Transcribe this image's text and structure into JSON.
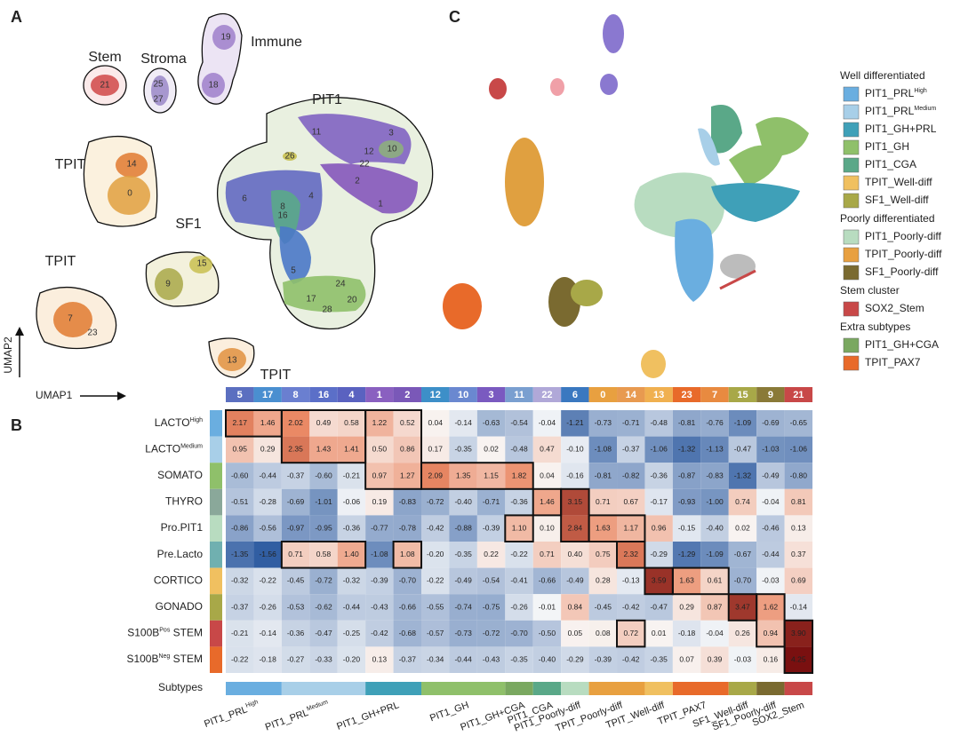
{
  "panels": {
    "a": "A",
    "b": "B",
    "c": "C"
  },
  "umap_a": {
    "groups": [
      "Stem",
      "Stroma",
      "Immune",
      "PIT1",
      "TPIT",
      "SF1",
      "TPIT",
      "TPIT"
    ],
    "clusters": [
      "21",
      "25",
      "27",
      "19",
      "18",
      "11",
      "3",
      "12",
      "10",
      "26",
      "22",
      "2",
      "6",
      "4",
      "8",
      "16",
      "1",
      "5",
      "24",
      "17",
      "20",
      "28",
      "14",
      "0",
      "15",
      "9",
      "7",
      "23",
      "13"
    ],
    "axis_x": "UMAP1",
    "axis_y": "UMAP2"
  },
  "legend": {
    "sections": [
      {
        "title": "Well differentiated",
        "items": [
          {
            "label": "PIT1_PRL",
            "sup": "High",
            "color": "#6aaee0"
          },
          {
            "label": "PIT1_PRL",
            "sup": "Medium",
            "color": "#a8cfe8"
          },
          {
            "label": "PIT1_GH+PRL",
            "color": "#3fa0b8"
          },
          {
            "label": "PIT1_GH",
            "color": "#8fc06a"
          },
          {
            "label": "PIT1_CGA",
            "color": "#5aa888"
          },
          {
            "label": "TPIT_Well-diff",
            "color": "#f0c060"
          },
          {
            "label": "SF1_Well-diff",
            "color": "#a8a848"
          }
        ]
      },
      {
        "title": "Poorly differentiated",
        "items": [
          {
            "label": "PIT1_Poorly-diff",
            "color": "#b8dcc0"
          },
          {
            "label": "TPIT_Poorly-diff",
            "color": "#e8a040"
          },
          {
            "label": "SF1_Poorly-diff",
            "color": "#7a6a30"
          }
        ]
      },
      {
        "title": "Stem cluster",
        "items": [
          {
            "label": "SOX2_Stem",
            "color": "#c84848"
          }
        ]
      },
      {
        "title": "Extra subtypes",
        "items": [
          {
            "label": "PIT1_GH+CGA",
            "color": "#7aa860"
          },
          {
            "label": "TPIT_PAX7",
            "color": "#e86a2a"
          }
        ]
      }
    ]
  },
  "heatmap": {
    "columns": [
      "5",
      "17",
      "8",
      "16",
      "4",
      "1",
      "2",
      "12",
      "10",
      "3",
      "11",
      "22",
      "6",
      "0",
      "14",
      "13",
      "23",
      "7",
      "15",
      "9",
      "21"
    ],
    "column_colors": [
      "#5b6fc0",
      "#4a8fd0",
      "#6a7fd0",
      "#5b6fc8",
      "#5a62c0",
      "#8a60c0",
      "#7a58b8",
      "#3d8fc8",
      "#6a88d0",
      "#7a5ac0",
      "#7a9fd0",
      "#b0a8d8",
      "#3a78c0",
      "#e8a040",
      "#e89a50",
      "#f0b050",
      "#e86a2a",
      "#e88a40",
      "#a8a848",
      "#8a7a38",
      "#c84848"
    ],
    "rows": [
      {
        "label": "LACTO",
        "sup": "High",
        "color": "#6aaee0",
        "cells": [
          "2.17",
          "1.46",
          "2.02",
          "0.49",
          "0.58",
          "1.22",
          "0.52",
          "0.04",
          "-0.14",
          "-0.63",
          "-0.54",
          "-0.04",
          "-1.21",
          "-0.73",
          "-0.71",
          "-0.48",
          "-0.81",
          "-0.76",
          "-1.09",
          "-0.69",
          "-0.65"
        ]
      },
      {
        "label": "LACTO",
        "sup": "Medium",
        "color": "#a8cfe8",
        "cells": [
          "0.95",
          "0.29",
          "2.35",
          "1.43",
          "1.41",
          "0.50",
          "0.86",
          "0.17",
          "-0.35",
          "0.02",
          "-0.48",
          "0.47",
          "-0.10",
          "-1.08",
          "-0.37",
          "-1.06",
          "-1.32",
          "-1.13",
          "-0.47",
          "-1.03",
          "-1.06"
        ]
      },
      {
        "label": "SOMATO",
        "color": "#8fc06a",
        "cells": [
          "-0.60",
          "-0.44",
          "-0.37",
          "-0.60",
          "-0.21",
          "0.97",
          "1.27",
          "2.09",
          "1.35",
          "1.15",
          "1.82",
          "0.04",
          "-0.16",
          "-0.81",
          "-0.82",
          "-0.36",
          "-0.87",
          "-0.83",
          "-1.32",
          "-0.49",
          "-0.80"
        ]
      },
      {
        "label": "THYRO",
        "color": "#8aa89a",
        "cells": [
          "-0.51",
          "-0.28",
          "-0.69",
          "-1.01",
          "-0.06",
          "0.19",
          "-0.83",
          "-0.72",
          "-0.40",
          "-0.71",
          "-0.36",
          "1.46",
          "3.15",
          "0.71",
          "0.67",
          "-0.17",
          "-0.93",
          "-1.00",
          "0.74",
          "-0.04",
          "0.81"
        ]
      },
      {
        "label": "Pro.PIT1",
        "color": "#b8dcc0",
        "cells": [
          "-0.86",
          "-0.56",
          "-0.97",
          "-0.95",
          "-0.36",
          "-0.77",
          "-0.78",
          "-0.42",
          "-0.88",
          "-0.39",
          "1.10",
          "0.10",
          "2.84",
          "1.63",
          "1.17",
          "0.96",
          "-0.15",
          "-0.40",
          "0.02",
          "-0.46",
          "0.13"
        ]
      },
      {
        "label": "Pre.Lacto",
        "color": "#70b0b0",
        "cells": [
          "-1.35",
          "-1.56",
          "0.71",
          "0.58",
          "1.40",
          "-1.08",
          "1.08",
          "-0.20",
          "-0.35",
          "0.22",
          "-0.22",
          "0.71",
          "0.40",
          "0.75",
          "2.32",
          "-0.29",
          "-1.29",
          "-1.09",
          "-0.67",
          "-0.44",
          "0.37"
        ]
      },
      {
        "label": "CORTICO",
        "color": "#f0c060",
        "cells": [
          "-0.32",
          "-0.22",
          "-0.45",
          "-0.72",
          "-0.32",
          "-0.39",
          "-0.70",
          "-0.22",
          "-0.49",
          "-0.54",
          "-0.41",
          "-0.66",
          "-0.49",
          "0.28",
          "-0.13",
          "3.59",
          "1.63",
          "0.61",
          "-0.70",
          "-0.03",
          "0.69"
        ]
      },
      {
        "label": "GONADO",
        "color": "#a8a848",
        "cells": [
          "-0.37",
          "-0.26",
          "-0.53",
          "-0.62",
          "-0.44",
          "-0.43",
          "-0.66",
          "-0.55",
          "-0.74",
          "-0.75",
          "-0.26",
          "-0.01",
          "0.84",
          "-0.45",
          "-0.42",
          "-0.47",
          "0.29",
          "0.87",
          "3.47",
          "1.62",
          "-0.14"
        ]
      },
      {
        "label": "S100B",
        "sup": "Pos",
        "after": " STEM",
        "color": "#c84848",
        "cells": [
          "-0.21",
          "-0.14",
          "-0.36",
          "-0.47",
          "-0.25",
          "-0.42",
          "-0.68",
          "-0.57",
          "-0.73",
          "-0.72",
          "-0.70",
          "-0.50",
          "0.05",
          "0.08",
          "0.72",
          "0.01",
          "-0.18",
          "-0.04",
          "0.26",
          "0.94",
          "3.90"
        ]
      },
      {
        "label": "S100B",
        "sup": "Neg",
        "after": " STEM",
        "color": "#e86a2a",
        "cells": [
          "-0.22",
          "-0.18",
          "-0.27",
          "-0.33",
          "-0.20",
          "0.13",
          "-0.37",
          "-0.34",
          "-0.44",
          "-0.43",
          "-0.35",
          "-0.40",
          "-0.29",
          "-0.39",
          "-0.42",
          "-0.35",
          "0.07",
          "0.39",
          "-0.03",
          "0.16",
          "4.25"
        ]
      }
    ],
    "subtypes_label": "Subtypes",
    "subtypes": [
      {
        "label": "PIT1_PRL",
        "sup": "High",
        "color": "#6aaee0"
      },
      {
        "label": "PIT1_PRL",
        "sup": "Medium",
        "color": "#a8cfe8"
      },
      {
        "label": "PIT1_GH+PRL",
        "color": "#3fa0b8"
      },
      {
        "label": "PIT1_GH",
        "color": "#8fc06a"
      },
      {
        "label": "PIT1_GH+CGA",
        "color": "#7aa860"
      },
      {
        "label": "PIT1_CGA",
        "color": "#5aa888"
      },
      {
        "label": "PIT1_Poorly-diff",
        "color": "#b8dcc0"
      },
      {
        "label": "TPIT_Poorly-diff",
        "color": "#e8a040"
      },
      {
        "label": "TPIT_Well-diff",
        "color": "#f0c060"
      },
      {
        "label": "TPIT_PAX7",
        "color": "#e86a2a"
      },
      {
        "label": "SF1_Well-diff",
        "color": "#a8a848"
      },
      {
        "label": "SF1_Poorly-diff",
        "color": "#7a6a30"
      },
      {
        "label": "SOX2_Stem",
        "color": "#c84848"
      }
    ]
  }
}
